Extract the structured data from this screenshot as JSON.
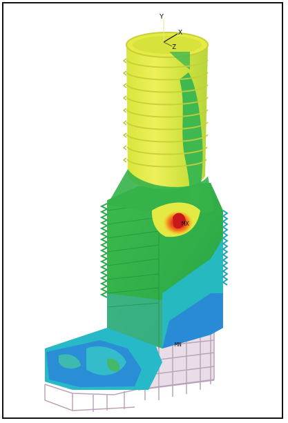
{
  "figure": {
    "axis_triad": {
      "x_label": "X",
      "y_label": "Y",
      "z_label": "Z"
    },
    "max_marker": "MX",
    "min_marker": "MN",
    "colors": {
      "yellow": "#e7ec3b",
      "yellow_green": "#c5de3a",
      "green": "#35b34a",
      "deep_green": "#22a343",
      "cyan": "#1fb8c9",
      "blue": "#2a7fd6",
      "red": "#d8231f",
      "orange": "#f39a22",
      "mesh_pink": "#d9c4d8"
    }
  }
}
